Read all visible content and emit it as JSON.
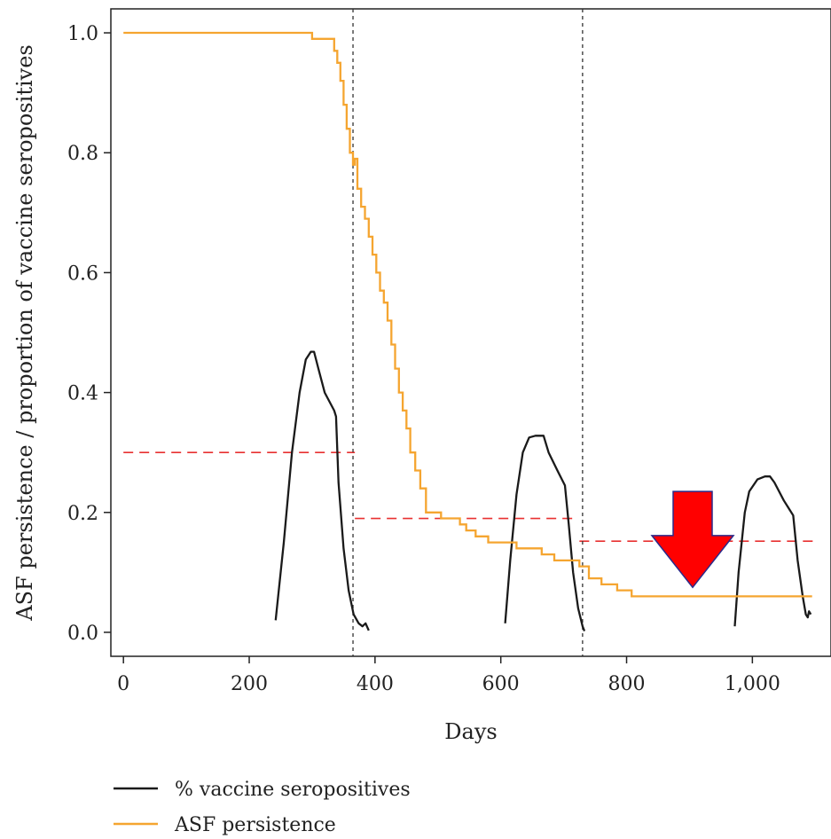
{
  "chart_data": {
    "type": "line",
    "title": "",
    "xlabel": "Days",
    "ylabel": "ASF persistence / proportion of vaccine seropositives",
    "xlim": [
      -20,
      1125
    ],
    "ylim": [
      -0.04,
      1.04
    ],
    "x_ticks": [
      0,
      200,
      400,
      600,
      800,
      1000
    ],
    "x_tick_labels": [
      "0",
      "200",
      "400",
      "600",
      "800",
      "1,000"
    ],
    "y_ticks": [
      0.0,
      0.2,
      0.4,
      0.6,
      0.8,
      1.0
    ],
    "y_tick_labels": [
      "0.0",
      "0.2",
      "0.4",
      "0.6",
      "0.8",
      "1.0"
    ],
    "grid": false,
    "legend_position": "bottom",
    "series": [
      {
        "name": "% vaccine seropositives",
        "color": "#1a1a1a",
        "segments": [
          [
            [
              242,
              0.02
            ],
            [
              255,
              0.15
            ],
            [
              268,
              0.3
            ],
            [
              280,
              0.4
            ],
            [
              290,
              0.455
            ],
            [
              298,
              0.468
            ],
            [
              303,
              0.468
            ],
            [
              310,
              0.44
            ],
            [
              320,
              0.4
            ],
            [
              335,
              0.37
            ],
            [
              338,
              0.36
            ],
            [
              342,
              0.25
            ],
            [
              350,
              0.14
            ],
            [
              358,
              0.07
            ],
            [
              366,
              0.03
            ],
            [
              374,
              0.015
            ],
            [
              380,
              0.01
            ],
            [
              385,
              0.015
            ],
            [
              390,
              0.003
            ]
          ],
          [
            [
              607,
              0.015
            ],
            [
              615,
              0.12
            ],
            [
              625,
              0.23
            ],
            [
              635,
              0.3
            ],
            [
              645,
              0.325
            ],
            [
              655,
              0.328
            ],
            [
              668,
              0.328
            ],
            [
              676,
              0.3
            ],
            [
              690,
              0.27
            ],
            [
              702,
              0.245
            ],
            [
              708,
              0.18
            ],
            [
              715,
              0.1
            ],
            [
              723,
              0.04
            ],
            [
              730,
              0.01
            ],
            [
              733,
              0.002
            ]
          ],
          [
            [
              972,
              0.01
            ],
            [
              978,
              0.1
            ],
            [
              988,
              0.2
            ],
            [
              995,
              0.235
            ],
            [
              1008,
              0.255
            ],
            [
              1020,
              0.26
            ],
            [
              1028,
              0.26
            ],
            [
              1035,
              0.25
            ],
            [
              1050,
              0.22
            ],
            [
              1065,
              0.195
            ],
            [
              1072,
              0.12
            ],
            [
              1080,
              0.06
            ],
            [
              1085,
              0.03
            ],
            [
              1088,
              0.025
            ],
            [
              1090,
              0.035
            ],
            [
              1093,
              0.03
            ]
          ]
        ]
      },
      {
        "name": "ASF persistence",
        "color": "#f5a530",
        "step": true,
        "points": [
          [
            0,
            1.0
          ],
          [
            300,
            1.0
          ],
          [
            300,
            0.99
          ],
          [
            333,
            0.99
          ],
          [
            335,
            0.97
          ],
          [
            340,
            0.95
          ],
          [
            345,
            0.92
          ],
          [
            350,
            0.88
          ],
          [
            355,
            0.84
          ],
          [
            360,
            0.8
          ],
          [
            365,
            0.78
          ],
          [
            368,
            0.79
          ],
          [
            372,
            0.74
          ],
          [
            378,
            0.71
          ],
          [
            384,
            0.69
          ],
          [
            390,
            0.66
          ],
          [
            396,
            0.63
          ],
          [
            402,
            0.6
          ],
          [
            408,
            0.57
          ],
          [
            414,
            0.55
          ],
          [
            420,
            0.52
          ],
          [
            426,
            0.48
          ],
          [
            432,
            0.44
          ],
          [
            438,
            0.4
          ],
          [
            444,
            0.37
          ],
          [
            450,
            0.34
          ],
          [
            456,
            0.3
          ],
          [
            464,
            0.27
          ],
          [
            472,
            0.24
          ],
          [
            481,
            0.2
          ],
          [
            505,
            0.19
          ],
          [
            535,
            0.18
          ],
          [
            545,
            0.17
          ],
          [
            560,
            0.16
          ],
          [
            580,
            0.15
          ],
          [
            625,
            0.14
          ],
          [
            665,
            0.13
          ],
          [
            685,
            0.12
          ],
          [
            725,
            0.11
          ],
          [
            740,
            0.09
          ],
          [
            760,
            0.08
          ],
          [
            785,
            0.07
          ],
          [
            808,
            0.06
          ],
          [
            1095,
            0.06
          ]
        ]
      }
    ],
    "reference_lines": {
      "vertical_dashed_x": [
        365,
        730
      ],
      "color_vertical": "#333333",
      "horizontal_dashed": [
        {
          "x0": 0,
          "x1": 368,
          "y": 0.3
        },
        {
          "x0": 368,
          "x1": 715,
          "y": 0.19
        },
        {
          "x0": 725,
          "x1": 1097,
          "y": 0.152
        }
      ],
      "color_horizontal": "#e83030"
    },
    "annotation": {
      "shape": "down-arrow",
      "color": "#ff0000",
      "outline": "#2a2a8a",
      "x": 905,
      "y_top": 0.235,
      "y_tip": 0.075
    }
  }
}
